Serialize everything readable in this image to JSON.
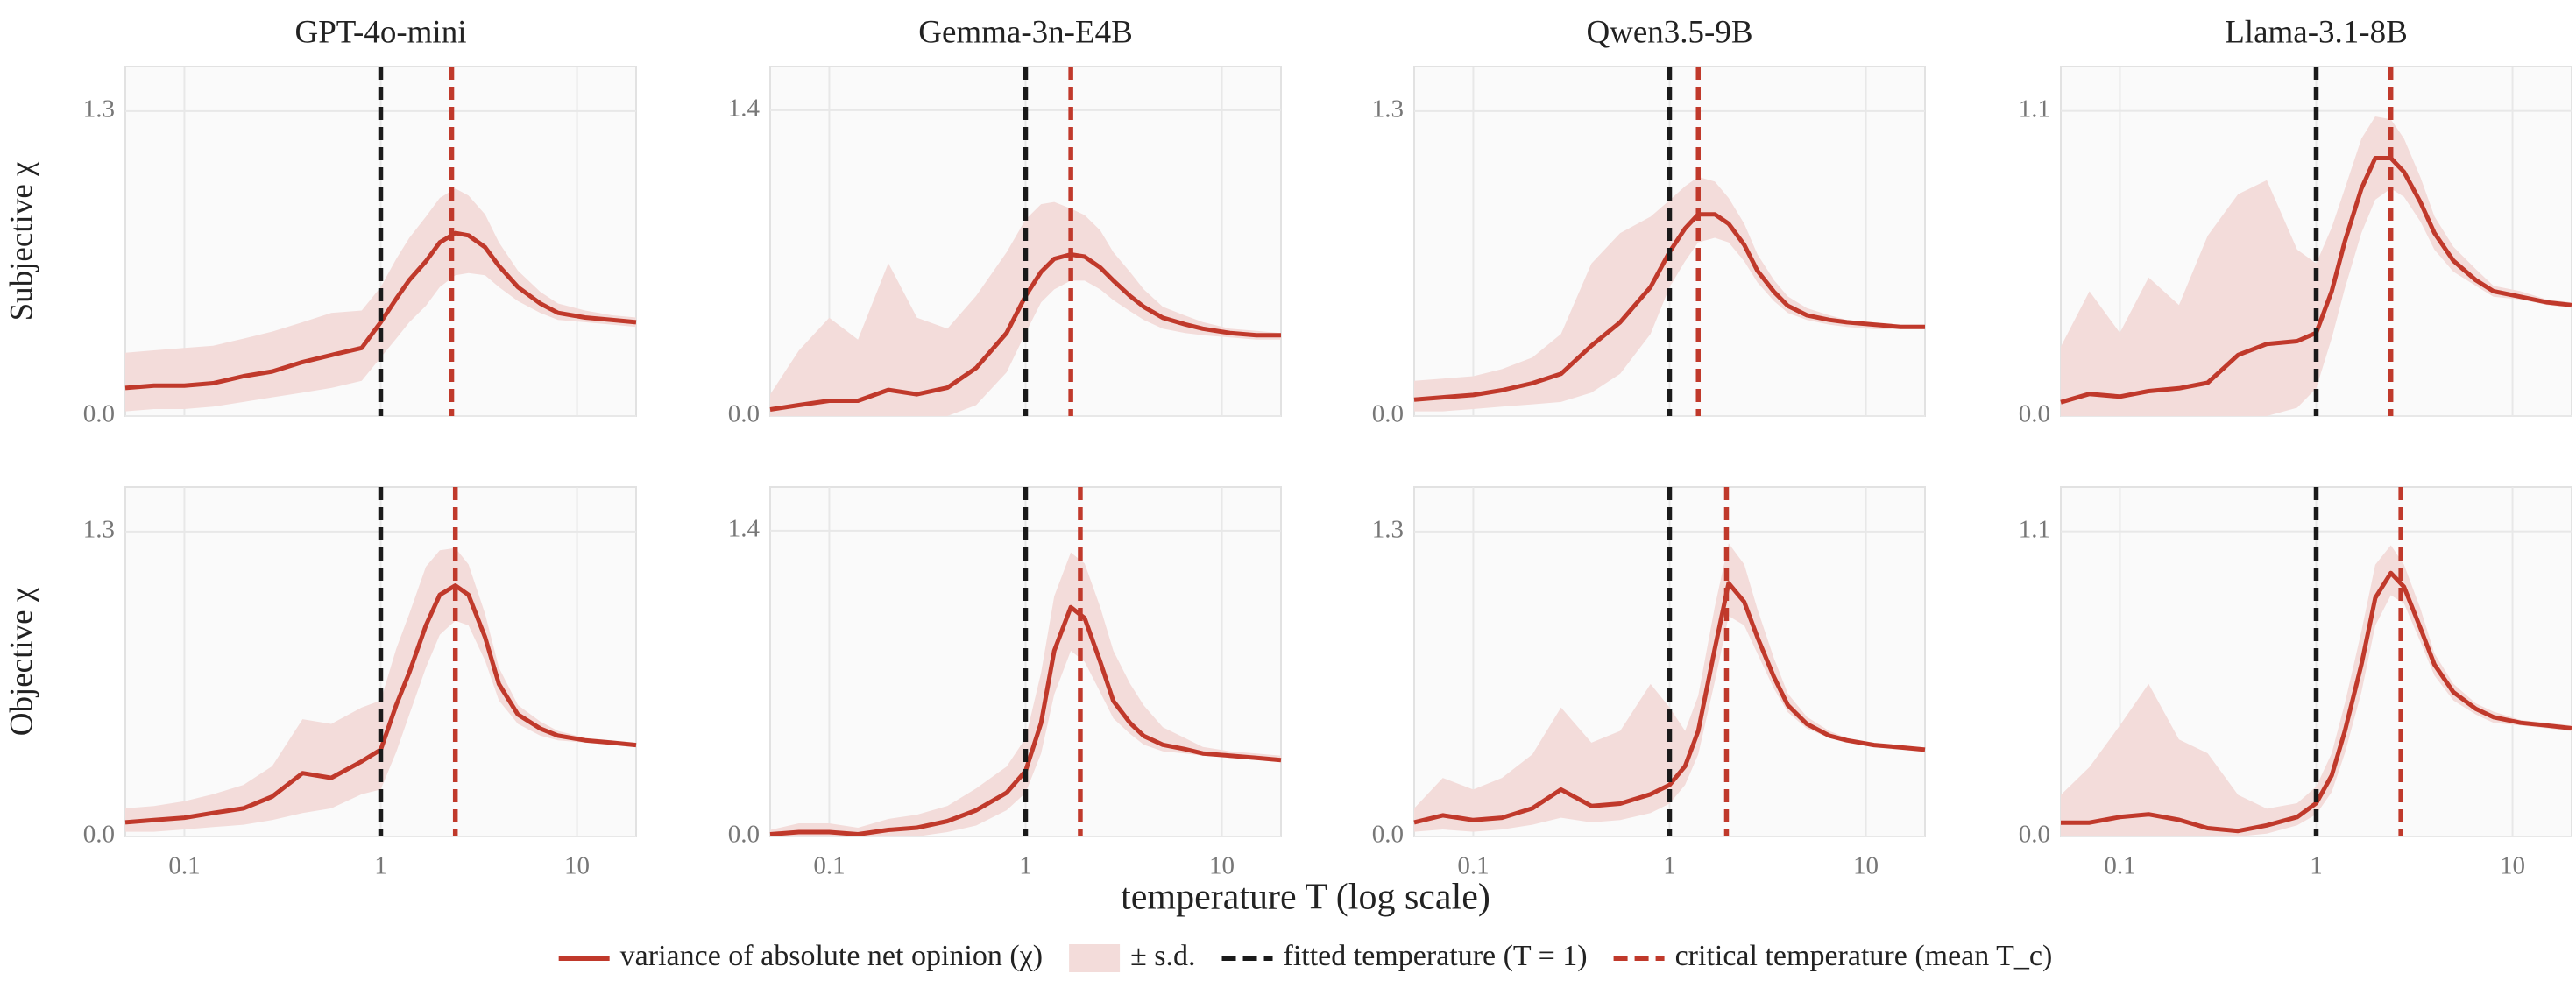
{
  "chart_data": [
    {
      "type": "line",
      "title": "GPT-4o-mini",
      "ylabel": "Subjective χ",
      "xscale": "log",
      "grid": true,
      "show_xtick_labels": false,
      "x": [
        0.05,
        0.07,
        0.1,
        0.14,
        0.2,
        0.28,
        0.4,
        0.56,
        0.8,
        1,
        1.2,
        1.4,
        1.7,
        2,
        2.4,
        2.8,
        3.4,
        4,
        5,
        6.5,
        8,
        11,
        15,
        20
      ],
      "xlim": [
        0.05,
        20
      ],
      "xticks": [
        0.1,
        1,
        10
      ],
      "ylim": [
        0,
        1.49
      ],
      "yticks": [
        {
          "value": 0,
          "label": "0.0"
        },
        1.3
      ],
      "series": [
        {
          "values": [
            0.12,
            0.13,
            0.13,
            0.14,
            0.17,
            0.19,
            0.23,
            0.26,
            0.29,
            0.4,
            0.5,
            0.58,
            0.66,
            0.74,
            0.78,
            0.77,
            0.72,
            0.64,
            0.55,
            0.48,
            0.44,
            0.42,
            0.41,
            0.4
          ],
          "lower": [
            0.02,
            0.03,
            0.03,
            0.04,
            0.06,
            0.08,
            0.1,
            0.12,
            0.15,
            0.25,
            0.33,
            0.4,
            0.47,
            0.55,
            0.6,
            0.61,
            0.6,
            0.55,
            0.49,
            0.44,
            0.41,
            0.4,
            0.39,
            0.38
          ],
          "upper": [
            0.27,
            0.28,
            0.29,
            0.3,
            0.33,
            0.36,
            0.4,
            0.44,
            0.45,
            0.55,
            0.67,
            0.76,
            0.85,
            0.93,
            0.97,
            0.94,
            0.86,
            0.74,
            0.62,
            0.53,
            0.48,
            0.45,
            0.43,
            0.42
          ]
        }
      ],
      "vlines": [
        1,
        2.3
      ]
    },
    {
      "type": "line",
      "title": "Gemma-3n-E4B",
      "xscale": "log",
      "grid": true,
      "show_xtick_labels": false,
      "x": [
        0.05,
        0.07,
        0.1,
        0.14,
        0.2,
        0.28,
        0.4,
        0.56,
        0.8,
        1,
        1.2,
        1.4,
        1.7,
        2,
        2.4,
        2.8,
        3.4,
        4,
        5,
        6.5,
        8,
        11,
        15,
        20
      ],
      "xlim": [
        0.05,
        20
      ],
      "xticks": [
        0.1,
        1,
        10
      ],
      "ylim": [
        0,
        1.6
      ],
      "yticks": [
        {
          "value": 0,
          "label": "0.0"
        },
        1.4
      ],
      "series": [
        {
          "values": [
            0.03,
            0.05,
            0.07,
            0.07,
            0.12,
            0.1,
            0.13,
            0.22,
            0.38,
            0.55,
            0.66,
            0.72,
            0.74,
            0.73,
            0.68,
            0.62,
            0.55,
            0.5,
            0.45,
            0.42,
            0.4,
            0.38,
            0.37,
            0.37
          ],
          "lower": [
            0,
            0,
            0,
            0,
            0,
            0,
            0,
            0.05,
            0.2,
            0.38,
            0.52,
            0.58,
            0.62,
            0.62,
            0.58,
            0.53,
            0.48,
            0.44,
            0.4,
            0.38,
            0.37,
            0.36,
            0.35,
            0.35
          ],
          "upper": [
            0.1,
            0.3,
            0.45,
            0.35,
            0.7,
            0.45,
            0.4,
            0.55,
            0.75,
            0.9,
            0.97,
            0.98,
            0.95,
            0.92,
            0.85,
            0.75,
            0.66,
            0.58,
            0.5,
            0.46,
            0.43,
            0.4,
            0.39,
            0.38
          ]
        }
      ],
      "vlines": [
        1,
        1.7
      ]
    },
    {
      "type": "line",
      "title": "Qwen3.5-9B",
      "xscale": "log",
      "grid": true,
      "show_xtick_labels": false,
      "x": [
        0.05,
        0.07,
        0.1,
        0.14,
        0.2,
        0.28,
        0.4,
        0.56,
        0.8,
        1,
        1.2,
        1.4,
        1.7,
        2,
        2.4,
        2.8,
        3.4,
        4,
        5,
        6.5,
        8,
        11,
        15,
        20
      ],
      "xlim": [
        0.05,
        20
      ],
      "xticks": [
        0.1,
        1,
        10
      ],
      "ylim": [
        0,
        1.49
      ],
      "yticks": [
        {
          "value": 0,
          "label": "0.0"
        },
        1.3
      ],
      "series": [
        {
          "values": [
            0.07,
            0.08,
            0.09,
            0.11,
            0.14,
            0.18,
            0.3,
            0.4,
            0.55,
            0.7,
            0.8,
            0.86,
            0.86,
            0.82,
            0.73,
            0.62,
            0.53,
            0.47,
            0.43,
            0.41,
            0.4,
            0.39,
            0.38,
            0.38
          ],
          "lower": [
            0.02,
            0.02,
            0.03,
            0.04,
            0.05,
            0.06,
            0.1,
            0.18,
            0.35,
            0.55,
            0.66,
            0.74,
            0.76,
            0.74,
            0.66,
            0.57,
            0.49,
            0.44,
            0.41,
            0.39,
            0.38,
            0.37,
            0.37,
            0.37
          ],
          "upper": [
            0.15,
            0.16,
            0.17,
            0.2,
            0.25,
            0.35,
            0.65,
            0.78,
            0.85,
            0.92,
            0.98,
            1.02,
            1.0,
            0.93,
            0.82,
            0.69,
            0.58,
            0.51,
            0.46,
            0.43,
            0.41,
            0.4,
            0.39,
            0.39
          ]
        }
      ],
      "vlines": [
        1,
        1.4
      ]
    },
    {
      "type": "line",
      "title": "Llama-3.1-8B",
      "xscale": "log",
      "grid": true,
      "show_xtick_labels": false,
      "x": [
        0.05,
        0.07,
        0.1,
        0.14,
        0.2,
        0.28,
        0.4,
        0.56,
        0.8,
        1,
        1.2,
        1.4,
        1.7,
        2,
        2.4,
        2.8,
        3.4,
        4,
        5,
        6.5,
        8,
        11,
        15,
        20
      ],
      "xlim": [
        0.05,
        20
      ],
      "xticks": [
        0.1,
        1,
        10
      ],
      "ylim": [
        0,
        1.26
      ],
      "yticks": [
        {
          "value": 0,
          "label": "0.0"
        },
        1.1
      ],
      "series": [
        {
          "values": [
            0.05,
            0.08,
            0.07,
            0.09,
            0.1,
            0.12,
            0.22,
            0.26,
            0.27,
            0.3,
            0.45,
            0.63,
            0.82,
            0.93,
            0.93,
            0.88,
            0.77,
            0.66,
            0.56,
            0.49,
            0.45,
            0.43,
            0.41,
            0.4
          ],
          "lower": [
            0,
            0,
            0,
            0,
            0,
            0,
            0,
            0,
            0.03,
            0.1,
            0.28,
            0.46,
            0.66,
            0.78,
            0.82,
            0.79,
            0.7,
            0.6,
            0.52,
            0.47,
            0.43,
            0.42,
            0.4,
            0.39
          ],
          "upper": [
            0.25,
            0.45,
            0.3,
            0.5,
            0.4,
            0.65,
            0.8,
            0.85,
            0.6,
            0.55,
            0.68,
            0.82,
            1.0,
            1.08,
            1.07,
            1.0,
            0.86,
            0.72,
            0.61,
            0.53,
            0.47,
            0.45,
            0.42,
            0.41
          ]
        }
      ],
      "vlines": [
        1,
        2.4
      ]
    },
    {
      "type": "line",
      "ylabel": "Objective χ",
      "xscale": "log",
      "grid": true,
      "show_xtick_labels": true,
      "x": [
        0.05,
        0.07,
        0.1,
        0.14,
        0.2,
        0.28,
        0.4,
        0.56,
        0.8,
        1,
        1.2,
        1.4,
        1.7,
        2,
        2.4,
        2.8,
        3.4,
        4,
        5,
        6.5,
        8,
        11,
        15,
        20
      ],
      "xlim": [
        0.05,
        20
      ],
      "xticks": [
        0.1,
        1,
        10
      ],
      "ylim": [
        0,
        1.49
      ],
      "yticks": [
        {
          "value": 0,
          "label": "0.0"
        },
        1.3
      ],
      "series": [
        {
          "values": [
            0.06,
            0.07,
            0.08,
            0.1,
            0.12,
            0.17,
            0.27,
            0.25,
            0.32,
            0.37,
            0.56,
            0.7,
            0.9,
            1.03,
            1.07,
            1.03,
            0.85,
            0.65,
            0.52,
            0.46,
            0.43,
            0.41,
            0.4,
            0.39
          ],
          "lower": [
            0.02,
            0.02,
            0.03,
            0.04,
            0.05,
            0.07,
            0.1,
            0.12,
            0.18,
            0.2,
            0.36,
            0.52,
            0.72,
            0.86,
            0.92,
            0.9,
            0.75,
            0.58,
            0.48,
            0.43,
            0.41,
            0.4,
            0.39,
            0.38
          ],
          "upper": [
            0.12,
            0.13,
            0.15,
            0.18,
            0.22,
            0.3,
            0.5,
            0.48,
            0.55,
            0.58,
            0.8,
            0.95,
            1.15,
            1.22,
            1.23,
            1.16,
            0.95,
            0.72,
            0.56,
            0.49,
            0.45,
            0.42,
            0.41,
            0.4
          ]
        }
      ],
      "vlines": [
        1,
        2.4
      ]
    },
    {
      "type": "line",
      "xscale": "log",
      "grid": true,
      "show_xtick_labels": true,
      "x": [
        0.05,
        0.07,
        0.1,
        0.14,
        0.2,
        0.28,
        0.4,
        0.56,
        0.8,
        1,
        1.2,
        1.4,
        1.7,
        2,
        2.4,
        2.8,
        3.4,
        4,
        5,
        6.5,
        8,
        11,
        15,
        20
      ],
      "xlim": [
        0.05,
        20
      ],
      "xticks": [
        0.1,
        1,
        10
      ],
      "ylim": [
        0,
        1.6
      ],
      "yticks": [
        {
          "value": 0,
          "label": "0.0"
        },
        1.4
      ],
      "series": [
        {
          "values": [
            0.01,
            0.02,
            0.02,
            0.01,
            0.03,
            0.04,
            0.07,
            0.12,
            0.2,
            0.3,
            0.52,
            0.85,
            1.05,
            1.0,
            0.8,
            0.62,
            0.52,
            0.46,
            0.42,
            0.4,
            0.38,
            0.37,
            0.36,
            0.35
          ],
          "lower": [
            0,
            0,
            0,
            0,
            0,
            0,
            0.02,
            0.05,
            0.12,
            0.2,
            0.38,
            0.65,
            0.85,
            0.8,
            0.66,
            0.54,
            0.47,
            0.42,
            0.39,
            0.38,
            0.37,
            0.36,
            0.35,
            0.34
          ],
          "upper": [
            0.03,
            0.06,
            0.06,
            0.04,
            0.08,
            0.1,
            0.14,
            0.22,
            0.32,
            0.45,
            0.75,
            1.1,
            1.3,
            1.25,
            1.05,
            0.85,
            0.7,
            0.6,
            0.5,
            0.45,
            0.41,
            0.39,
            0.38,
            0.37
          ]
        }
      ],
      "vlines": [
        1,
        1.9
      ]
    },
    {
      "type": "line",
      "xscale": "log",
      "grid": true,
      "show_xtick_labels": true,
      "x": [
        0.05,
        0.07,
        0.1,
        0.14,
        0.2,
        0.28,
        0.4,
        0.56,
        0.8,
        1,
        1.2,
        1.4,
        1.7,
        2,
        2.4,
        2.8,
        3.4,
        4,
        5,
        6.5,
        8,
        11,
        15,
        20
      ],
      "xlim": [
        0.05,
        20
      ],
      "xticks": [
        0.1,
        1,
        10
      ],
      "ylim": [
        0,
        1.49
      ],
      "yticks": [
        {
          "value": 0,
          "label": "0.0"
        },
        1.3
      ],
      "series": [
        {
          "values": [
            0.06,
            0.09,
            0.07,
            0.08,
            0.12,
            0.2,
            0.13,
            0.14,
            0.18,
            0.22,
            0.3,
            0.45,
            0.8,
            1.08,
            1.0,
            0.85,
            0.68,
            0.56,
            0.48,
            0.43,
            0.41,
            0.39,
            0.38,
            0.37
          ],
          "lower": [
            0.02,
            0.03,
            0.02,
            0.03,
            0.05,
            0.08,
            0.06,
            0.07,
            0.1,
            0.14,
            0.22,
            0.35,
            0.66,
            0.94,
            0.9,
            0.78,
            0.63,
            0.53,
            0.46,
            0.42,
            0.4,
            0.38,
            0.37,
            0.36
          ],
          "upper": [
            0.12,
            0.25,
            0.2,
            0.25,
            0.35,
            0.55,
            0.4,
            0.45,
            0.65,
            0.55,
            0.45,
            0.6,
            0.98,
            1.25,
            1.16,
            0.97,
            0.76,
            0.61,
            0.51,
            0.45,
            0.42,
            0.4,
            0.39,
            0.38
          ]
        }
      ],
      "vlines": [
        1,
        1.95
      ]
    },
    {
      "type": "line",
      "xscale": "log",
      "grid": true,
      "show_xtick_labels": true,
      "x": [
        0.05,
        0.07,
        0.1,
        0.14,
        0.2,
        0.28,
        0.4,
        0.56,
        0.8,
        1,
        1.2,
        1.4,
        1.7,
        2,
        2.4,
        2.8,
        3.4,
        4,
        5,
        6.5,
        8,
        11,
        15,
        20
      ],
      "xlim": [
        0.05,
        20
      ],
      "xticks": [
        0.1,
        1,
        10
      ],
      "ylim": [
        0,
        1.26
      ],
      "yticks": [
        {
          "value": 0,
          "label": "0.0"
        },
        1.1
      ],
      "series": [
        {
          "values": [
            0.05,
            0.05,
            0.07,
            0.08,
            0.06,
            0.03,
            0.02,
            0.04,
            0.07,
            0.12,
            0.22,
            0.38,
            0.62,
            0.86,
            0.95,
            0.9,
            0.75,
            0.62,
            0.52,
            0.46,
            0.43,
            0.41,
            0.4,
            0.39
          ],
          "lower": [
            0,
            0,
            0,
            0,
            0,
            0,
            0,
            0.01,
            0.04,
            0.08,
            0.16,
            0.3,
            0.52,
            0.76,
            0.87,
            0.84,
            0.7,
            0.58,
            0.49,
            0.44,
            0.41,
            0.4,
            0.39,
            0.38
          ],
          "upper": [
            0.15,
            0.25,
            0.4,
            0.55,
            0.35,
            0.3,
            0.15,
            0.1,
            0.12,
            0.18,
            0.3,
            0.48,
            0.74,
            0.98,
            1.05,
            0.98,
            0.82,
            0.66,
            0.55,
            0.48,
            0.45,
            0.42,
            0.41,
            0.4
          ]
        }
      ],
      "vlines": [
        1,
        2.7
      ]
    }
  ],
  "figure": {
    "xlabel": "temperature T (log scale)",
    "legend": [
      {
        "label": "variance of absolute net opinion (χ)",
        "color": "#c0392b",
        "style": "line"
      },
      {
        "label": "± s.d.",
        "color": "#f3dcda",
        "style": "band"
      },
      {
        "label": "fitted temperature (T = 1)",
        "color": "#1a1a1a",
        "style": "dashed"
      },
      {
        "label": "critical temperature (mean T_c)",
        "color": "#c0392b",
        "style": "dashed"
      }
    ]
  }
}
